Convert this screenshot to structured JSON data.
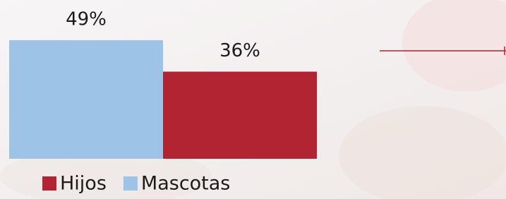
{
  "chart_data": {
    "type": "bar",
    "categories": [
      null
    ],
    "series": [
      {
        "name": "Hijos",
        "color": "#b22432",
        "values": [
          36
        ],
        "value_labels": [
          "36%"
        ]
      },
      {
        "name": "Mascotas",
        "color": "#9dc3e6",
        "values": [
          49
        ],
        "value_labels": [
          "49%"
        ]
      }
    ]
  }
}
